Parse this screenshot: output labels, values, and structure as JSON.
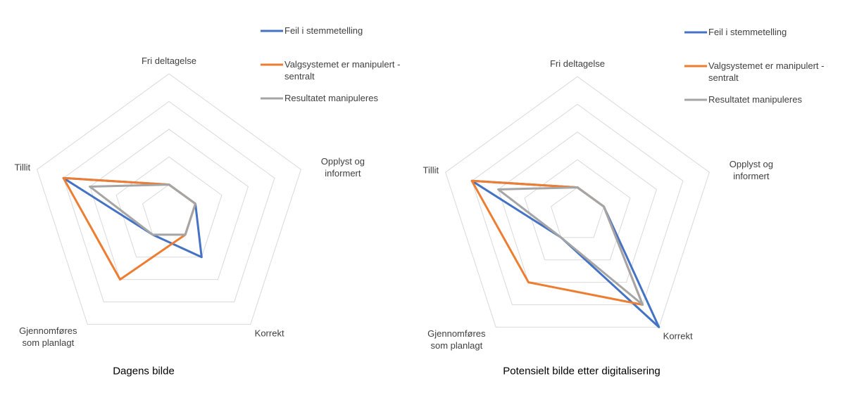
{
  "chart_data": [
    {
      "type": "radar",
      "title": "Dagens bilde",
      "categories": [
        "Fri deltagelse",
        "Opplyst og informert",
        "Korrekt",
        "Gjennomføres som planlagt",
        "Tillit"
      ],
      "rlim": [
        0,
        5
      ],
      "rticks": [
        1,
        2,
        3,
        4,
        5
      ],
      "grid": true,
      "legend": "top-right",
      "series": [
        {
          "name": "Feil i stemmetelling",
          "color": "#4472c4",
          "values": [
            1,
            1,
            2,
            1,
            4
          ]
        },
        {
          "name": "Valgsystemet er manipulert - sentralt",
          "color": "#ed7d31",
          "values": [
            1,
            1,
            1,
            3,
            4
          ]
        },
        {
          "name": "Resultatet manipuleres",
          "color": "#a5a5a5",
          "values": [
            1,
            1,
            1,
            1,
            3
          ]
        }
      ]
    },
    {
      "type": "radar",
      "title": "Potensielt bilde etter digitalisering",
      "categories": [
        "Fri deltagelse",
        "Opplyst og informert",
        "Korrekt",
        "Gjennomføres som planlagt",
        "Tillit"
      ],
      "rlim": [
        0,
        5
      ],
      "rticks": [
        1,
        2,
        3,
        4,
        5
      ],
      "grid": true,
      "legend": "top-right",
      "series": [
        {
          "name": "Feil i stemmetelling",
          "color": "#4472c4",
          "values": [
            1,
            1,
            5,
            1,
            4
          ]
        },
        {
          "name": "Valgsystemet er manipulert - sentralt",
          "color": "#ed7d31",
          "values": [
            1,
            1,
            4,
            3,
            4
          ]
        },
        {
          "name": "Resultatet manipuleres",
          "color": "#a5a5a5",
          "values": [
            1,
            1,
            4,
            1,
            3
          ]
        }
      ]
    }
  ]
}
